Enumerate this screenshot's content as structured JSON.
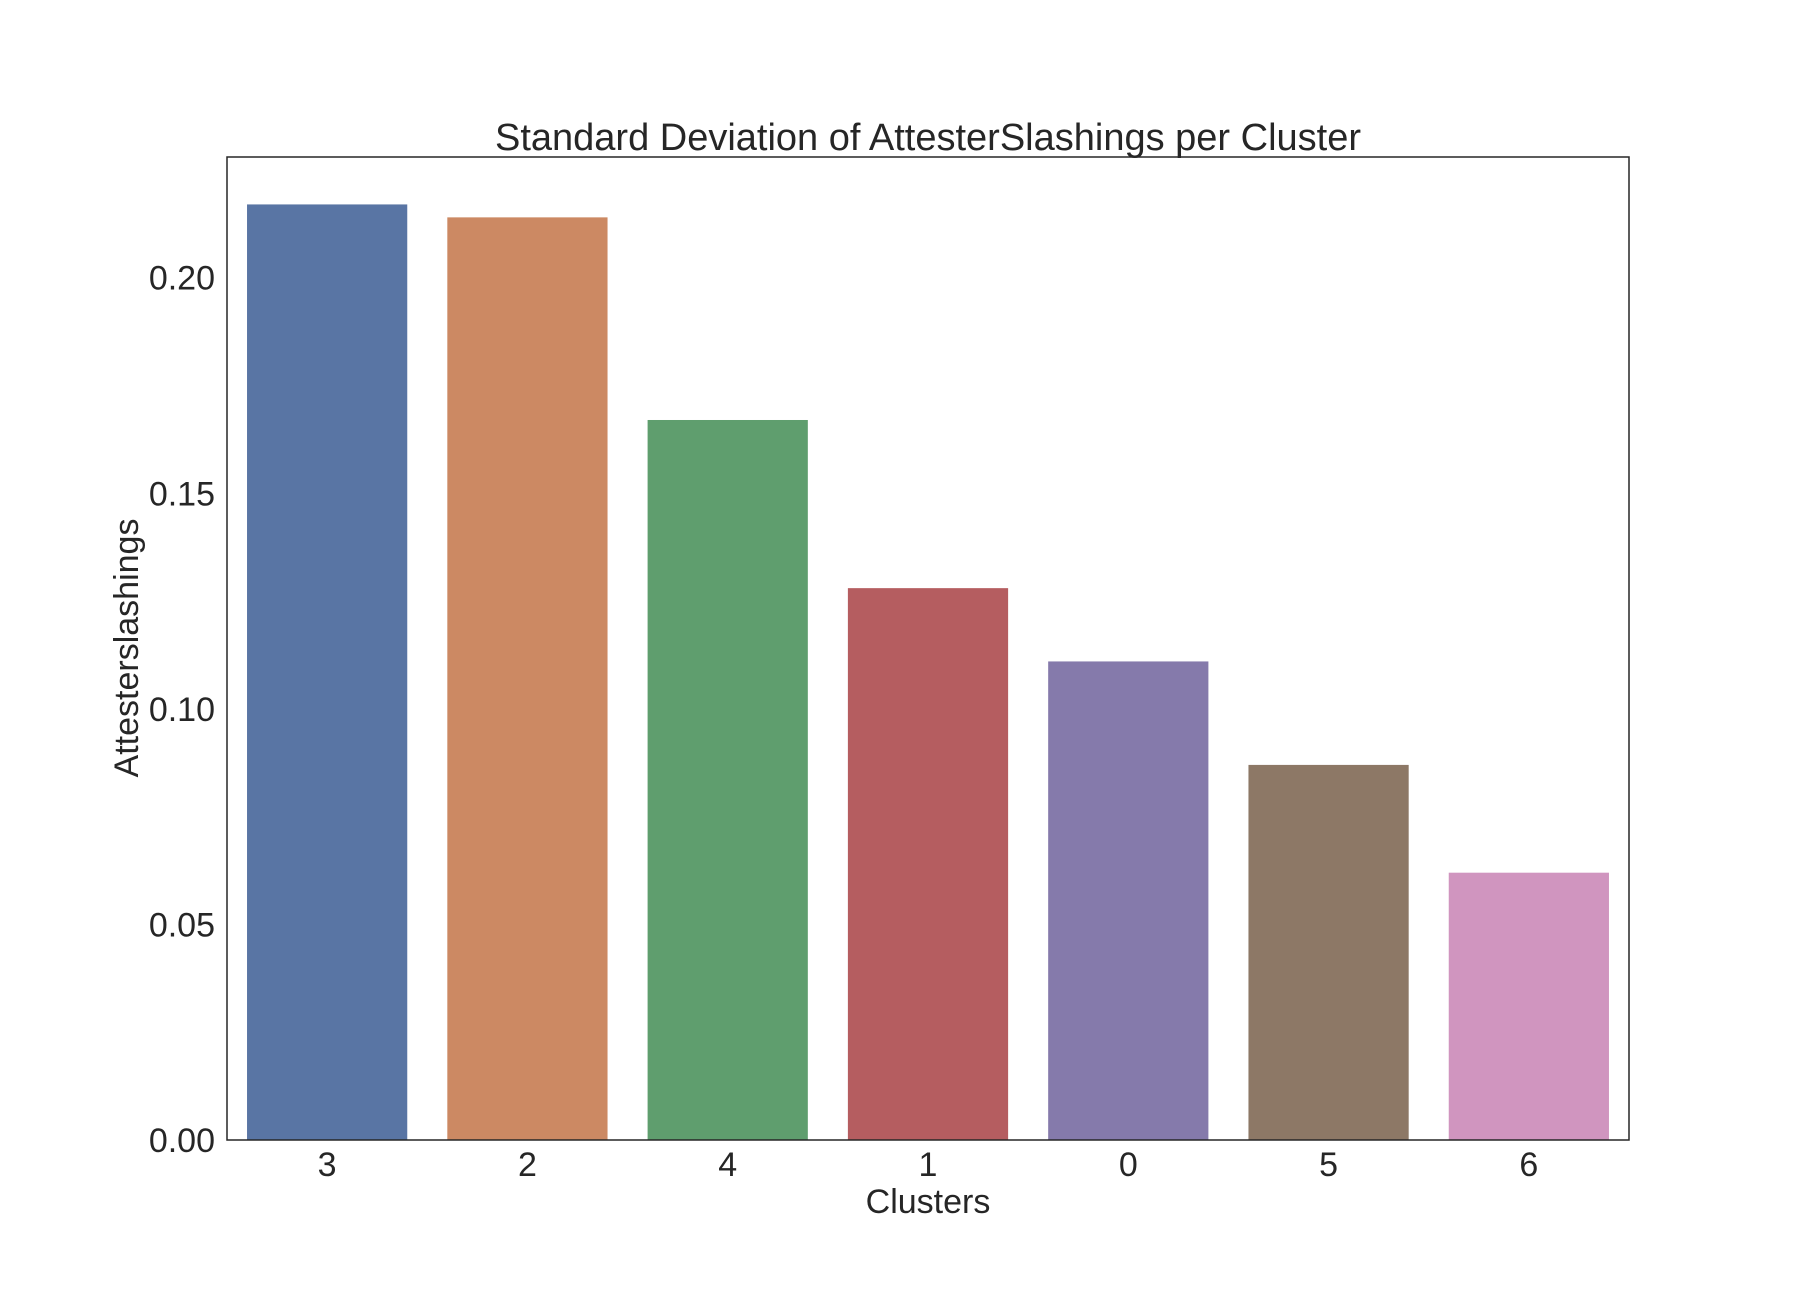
{
  "chart_data": {
    "type": "bar",
    "title": "Standard Deviation of AttesterSlashings per Cluster",
    "xlabel": "Clusters",
    "ylabel": "Attesterslashings",
    "categories": [
      "3",
      "2",
      "4",
      "1",
      "0",
      "5",
      "6"
    ],
    "values": [
      0.217,
      0.214,
      0.167,
      0.128,
      0.111,
      0.087,
      0.062
    ],
    "ylim": [
      0,
      0.228
    ],
    "yticks": [
      0.0,
      0.05,
      0.1,
      0.15,
      0.2
    ],
    "ytick_labels": [
      "0.00",
      "0.05",
      "0.10",
      "0.15",
      "0.20"
    ],
    "colors": [
      "#5975a4",
      "#cc8963",
      "#5f9e6e",
      "#b55d60",
      "#857aab",
      "#8d7866",
      "#d095bf"
    ],
    "grid": false,
    "legend": "none"
  }
}
